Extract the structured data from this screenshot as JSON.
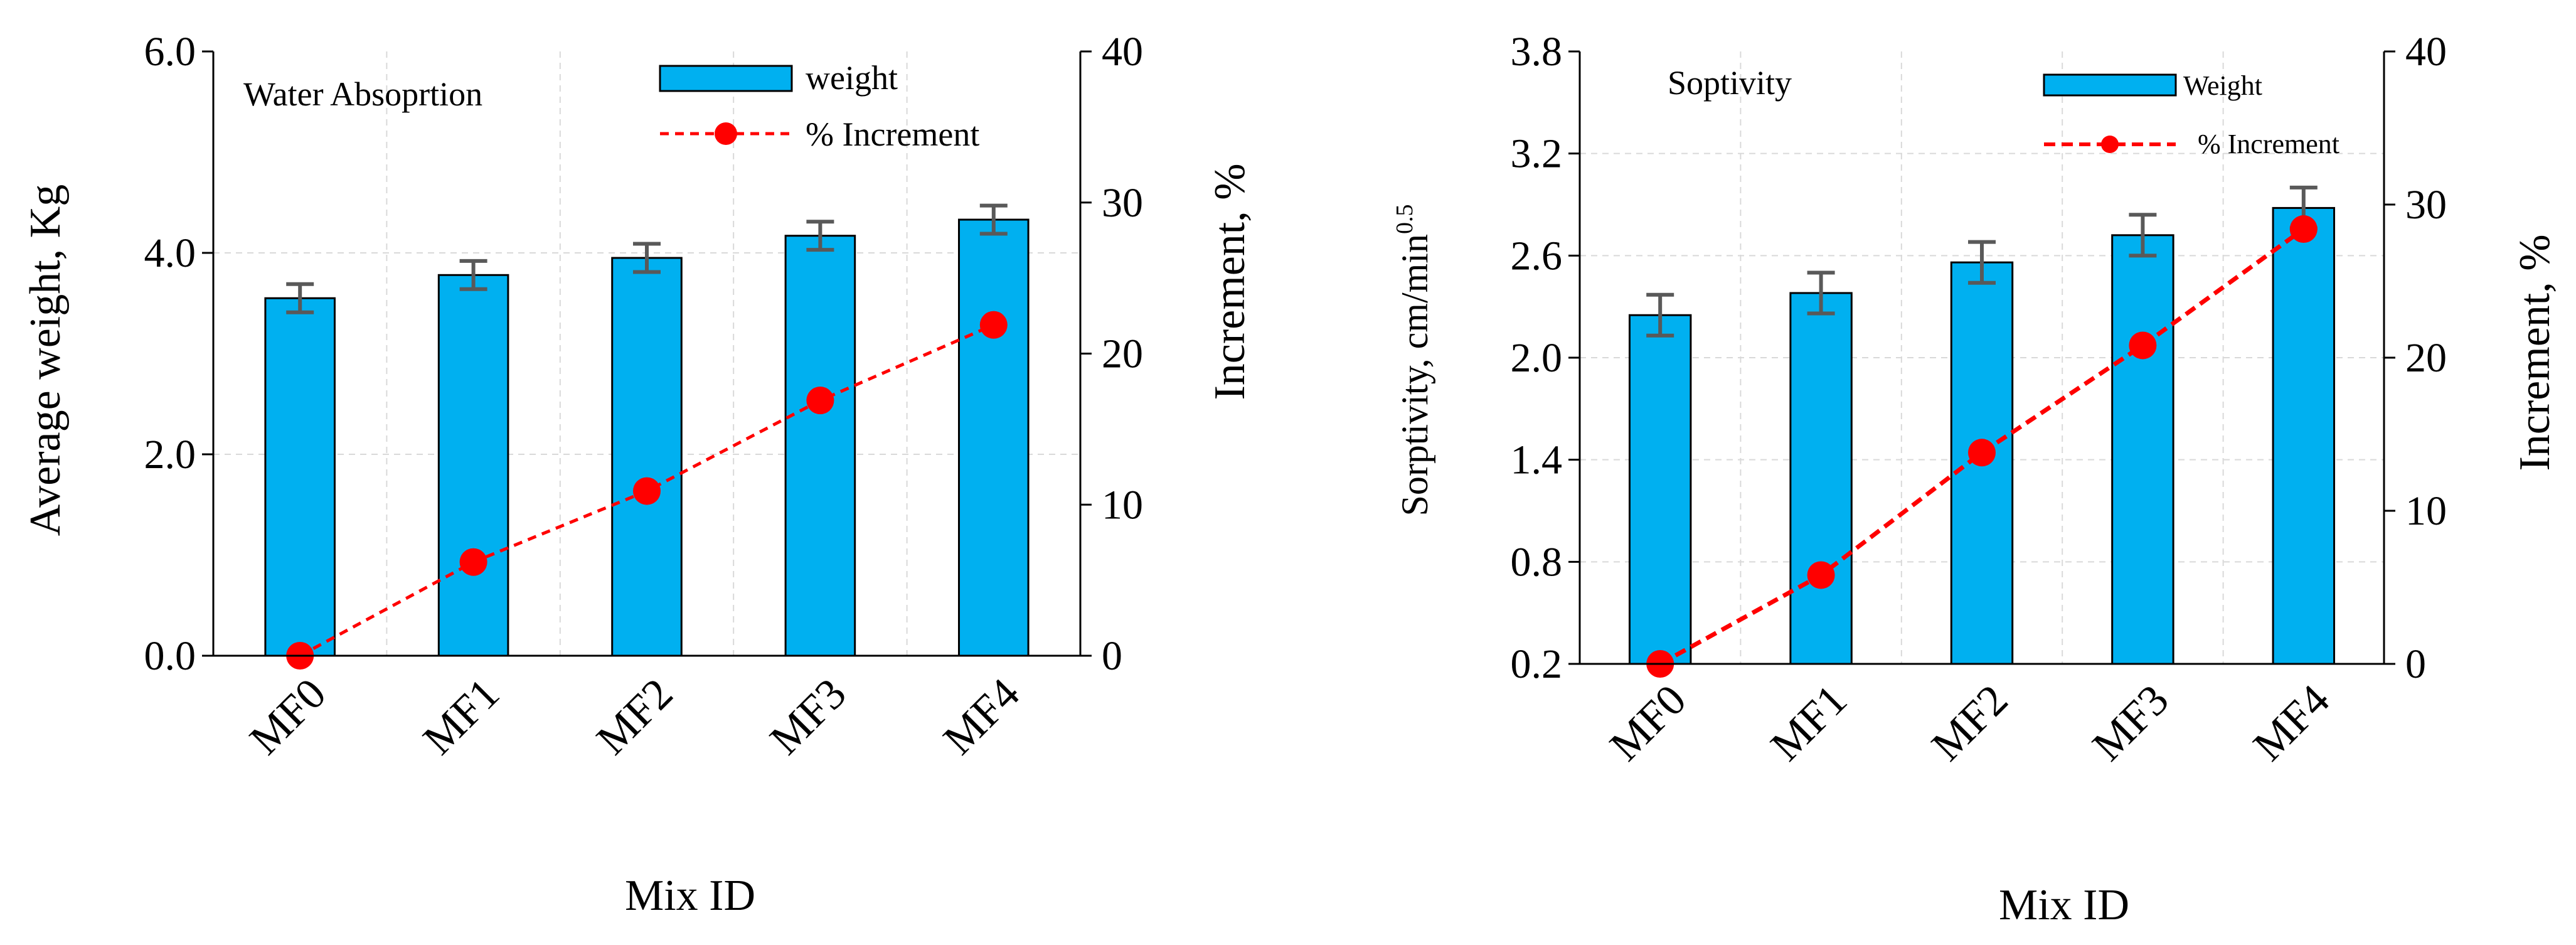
{
  "colors": {
    "bar": "#00b0f0",
    "line": "#ff0000",
    "error": "#595959",
    "grid": "#d9d9d9"
  },
  "chart_data": [
    {
      "type": "bar",
      "title": "Water Absoprtion",
      "xlabel": "Mix ID",
      "ylabel": "Average weight, Kg",
      "ylabel_right": "Increment, %",
      "categories": [
        "MF0",
        "MF1",
        "MF2",
        "MF3",
        "MF4"
      ],
      "ylim": [
        0,
        6
      ],
      "yticks": [
        "0.0",
        "2.0",
        "4.0",
        "6.0"
      ],
      "y2lim": [
        0,
        40
      ],
      "y2ticks": [
        "0",
        "10",
        "20",
        "30",
        "40"
      ],
      "series": [
        {
          "name": "weight",
          "axis": "left",
          "type": "bar",
          "values": [
            3.55,
            3.78,
            3.95,
            4.17,
            4.33
          ],
          "errors": [
            0.14,
            0.14,
            0.14,
            0.14,
            0.14
          ]
        },
        {
          "name": "% Increment",
          "axis": "right",
          "type": "line",
          "values": [
            0,
            6.2,
            10.9,
            16.9,
            21.9
          ]
        }
      ]
    },
    {
      "type": "bar",
      "title": "Soptivity",
      "xlabel": "Mix ID",
      "ylabel": "Sorptivity, cm/min",
      "ylabel_superscript": "0.5",
      "ylabel_right": "Increment, %",
      "categories": [
        "MF0",
        "MF1",
        "MF2",
        "MF3",
        "MF4"
      ],
      "ylim": [
        0.2,
        3.8
      ],
      "yticks": [
        "0.2",
        "0.8",
        "1.4",
        "2.0",
        "2.6",
        "3.2",
        "3.8"
      ],
      "y2lim": [
        0,
        40
      ],
      "y2ticks": [
        "0",
        "10",
        "20",
        "30",
        "40"
      ],
      "series": [
        {
          "name": "Weight",
          "axis": "left",
          "type": "bar",
          "values": [
            2.25,
            2.38,
            2.56,
            2.72,
            2.88
          ],
          "errors": [
            0.12,
            0.12,
            0.12,
            0.12,
            0.12
          ]
        },
        {
          "name": "% Increment",
          "axis": "right",
          "type": "line",
          "values": [
            0,
            5.8,
            13.8,
            20.8,
            28.4
          ]
        }
      ]
    }
  ]
}
